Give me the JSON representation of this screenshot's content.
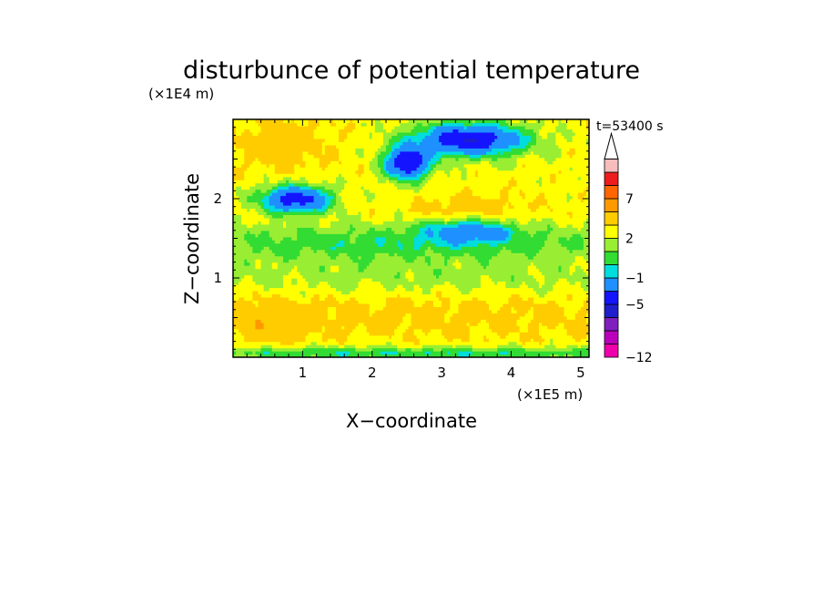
{
  "chart_data": {
    "type": "heatmap",
    "title": "disturbunce of potential temperature",
    "xlabel": "X−coordinate",
    "ylabel": "Z−coordinate",
    "x_unit": "(×1E5 m)",
    "y_unit": "(×1E4 m)",
    "time_label": "t=53400 s",
    "xlim": [
      0,
      5.12
    ],
    "ylim": [
      0,
      3.0
    ],
    "x_ticks": [
      1,
      2,
      3,
      4,
      5
    ],
    "x_tick_labels": [
      "1",
      "2",
      "3",
      "4",
      "5"
    ],
    "y_ticks": [
      1,
      2
    ],
    "y_tick_labels": [
      "1",
      "2"
    ],
    "colorbar": {
      "levels": [
        -12,
        -11,
        -9,
        -7,
        -5,
        -3,
        -1,
        0,
        1,
        2,
        3,
        5,
        7,
        9,
        11,
        13
      ],
      "tick_values": [
        7,
        2,
        -1,
        -5,
        -12
      ],
      "tick_labels": [
        "7",
        "2",
        "−1",
        "−5",
        "−12"
      ],
      "extend": "max",
      "colors": [
        "#ee00aa",
        "#bb00bb",
        "#7f1fbf",
        "#1e1ecc",
        "#1414ff",
        "#1e90ff",
        "#00dddd",
        "#32dc32",
        "#99ee33",
        "#ffff00",
        "#ffcc00",
        "#ff9900",
        "#ff6600",
        "#ee1c1c",
        "#f7bcbc"
      ],
      "above_color": "#ffffff"
    },
    "grid": false,
    "features": [
      {
        "name": "base",
        "value": 2.5
      },
      {
        "name": "upper-warm-left",
        "x": 0.7,
        "z": 2.7,
        "value": 3.5
      },
      {
        "name": "warm-band-low",
        "x": 2.5,
        "z": 0.55,
        "value": 3.4
      },
      {
        "name": "warm-left-low",
        "x": 0.5,
        "z": 0.45,
        "value": 4.0
      },
      {
        "name": "warm-band-mid",
        "x": 2.5,
        "z": 1.0,
        "value": 1.5
      },
      {
        "name": "green-band",
        "x": 2.4,
        "z": 1.45,
        "value": 0.4
      },
      {
        "name": "cold-left",
        "x": 0.9,
        "z": 2.0,
        "value": -4.0
      },
      {
        "name": "cold-center",
        "x": 2.5,
        "z": 2.45,
        "value": -4.8
      },
      {
        "name": "cold-upper-right",
        "x": 3.4,
        "z": 2.75,
        "value": -4.8
      },
      {
        "name": "cold-mid-right",
        "x": 3.4,
        "z": 1.6,
        "value": -2.0
      },
      {
        "name": "warm-stripe-right",
        "x": 3.4,
        "z": 1.9,
        "value": 3.0
      },
      {
        "name": "bottom-green",
        "x": 2.5,
        "z": 0.05,
        "value": 0.3
      }
    ]
  }
}
